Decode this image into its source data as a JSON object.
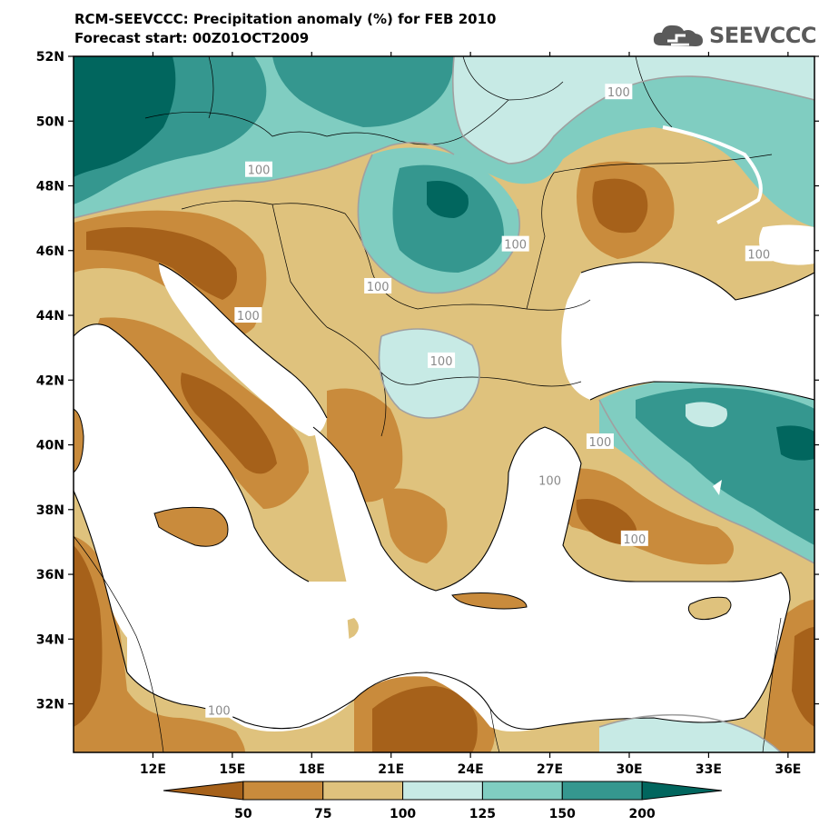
{
  "title": {
    "line1": "RCM-SEEVCCC: Precipitation anomaly (%) for FEB 2010",
    "line2": "Forecast start: 00Z01OCT2009"
  },
  "logo": {
    "text": "SEEVCCC",
    "icon": "cloud-icon",
    "color": "#5a5a5a"
  },
  "map": {
    "lon_range": [
      9,
      37
    ],
    "lat_range": [
      30.5,
      52
    ],
    "lat_ticks": [
      "52N",
      "50N",
      "48N",
      "46N",
      "44N",
      "42N",
      "40N",
      "38N",
      "36N",
      "34N",
      "32N"
    ],
    "lat_tick_values": [
      52,
      50,
      48,
      46,
      44,
      42,
      40,
      38,
      36,
      34,
      32
    ],
    "lon_ticks": [
      "12E",
      "15E",
      "18E",
      "21E",
      "24E",
      "27E",
      "30E",
      "33E",
      "36E"
    ],
    "lon_tick_values": [
      12,
      15,
      18,
      21,
      24,
      27,
      30,
      33,
      36
    ],
    "contour_labels": [
      {
        "text": "100",
        "lon": 29.6,
        "lat": 50.9
      },
      {
        "text": "100",
        "lon": 16.0,
        "lat": 48.5
      },
      {
        "text": "100",
        "lon": 25.7,
        "lat": 46.2
      },
      {
        "text": "100",
        "lon": 34.9,
        "lat": 45.9
      },
      {
        "text": "100",
        "lon": 20.5,
        "lat": 44.9
      },
      {
        "text": "100",
        "lon": 15.6,
        "lat": 44.0
      },
      {
        "text": "100",
        "lon": 22.9,
        "lat": 42.6
      },
      {
        "text": "100",
        "lon": 28.9,
        "lat": 40.1
      },
      {
        "text": "100",
        "lon": 27.0,
        "lat": 38.9
      },
      {
        "text": "100",
        "lon": 30.2,
        "lat": 37.1
      },
      {
        "text": "100",
        "lon": 14.5,
        "lat": 31.8
      }
    ]
  },
  "colorbar": {
    "labels": [
      "50",
      "75",
      "100",
      "125",
      "150",
      "200"
    ],
    "colors": [
      "#a6611a",
      "#c98b3c",
      "#dfc27d",
      "#c7eae5",
      "#80cdc1",
      "#35978f",
      "#01665e"
    ]
  },
  "palette": {
    "deep_brown": "#a6611a",
    "brown": "#c98b3c",
    "tan": "#dfc27d",
    "pale_teal": "#c7eae5",
    "teal": "#80cdc1",
    "dark_teal": "#35978f",
    "deepest_teal": "#01665e",
    "sea": "#ffffff"
  }
}
